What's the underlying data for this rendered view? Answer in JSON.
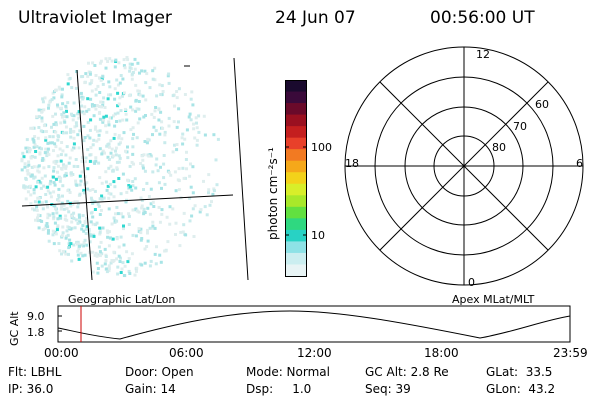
{
  "header": {
    "instrument": "Ultraviolet Imager",
    "date": "24 Jun 07",
    "time": "00:56:00 UT"
  },
  "colorbar": {
    "units_label": "photon cm⁻²s⁻¹",
    "ticks": [
      "100",
      "10"
    ],
    "colors": [
      "#1a0a2e",
      "#3a0a3a",
      "#6a0a2a",
      "#9a1020",
      "#c41f1f",
      "#e8402a",
      "#f27a22",
      "#f5a81a",
      "#f3d21a",
      "#d8ee2a",
      "#a8e82a",
      "#62e040",
      "#2fd880",
      "#28d2c4",
      "#8ee2e6",
      "#cbeef0",
      "#e8f4f5"
    ]
  },
  "geo_map": {
    "label": "Geographic Lat/Lon"
  },
  "polar_plot": {
    "label": "Apex MLat/MLT",
    "mlt_labels": {
      "top": "12",
      "left": "18",
      "right": "6",
      "bottom": "0"
    },
    "lat_labels": [
      "60",
      "70",
      "80"
    ]
  },
  "altitude_plot": {
    "ylabel": "GC Alt",
    "y_ticks": [
      "9.0",
      "1.8"
    ],
    "x_ticks": [
      "00:00",
      "06:00",
      "12:00",
      "18:00",
      "23:59"
    ],
    "current_time_marker": "00:56",
    "marker_color": "#cc0000"
  },
  "status": {
    "flt": "Flt: LBHL",
    "ip": "IP: 36.0",
    "door": "Door: Open",
    "gain": "Gain: 14",
    "mode": "Mode: Normal",
    "dsp": "Dsp:     1.0",
    "gc_alt": "GC Alt: 2.8 Re",
    "seq": "Seq: 39",
    "glat": "GLat:  33.5",
    "glon": "GLon:  43.2"
  }
}
